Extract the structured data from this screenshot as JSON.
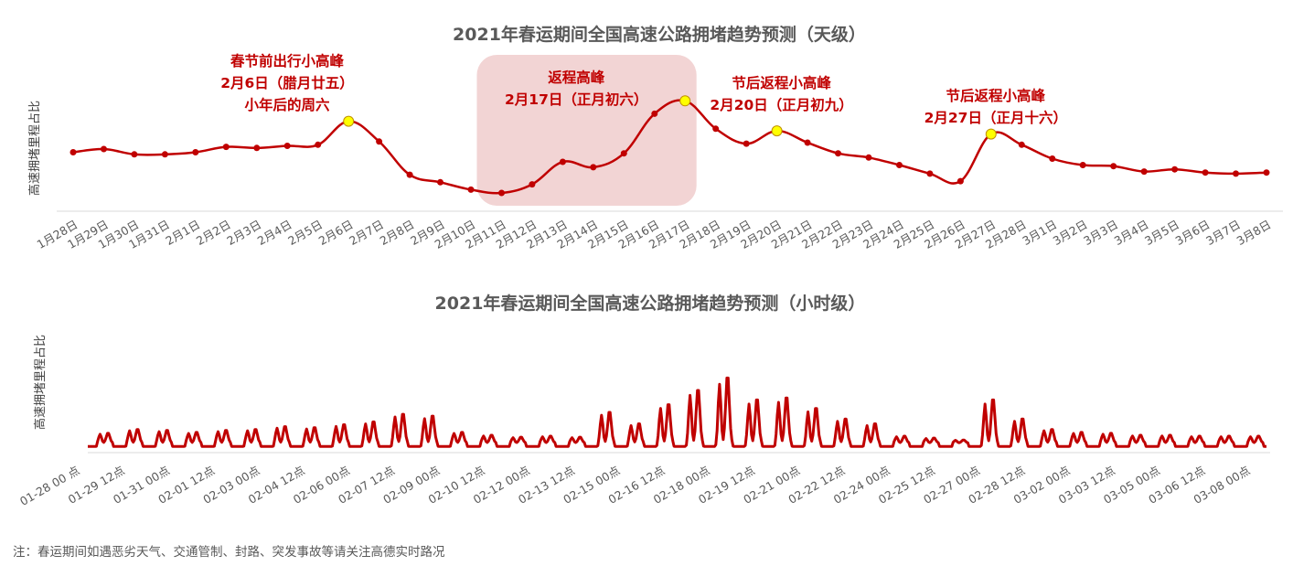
{
  "colors": {
    "line": "#c00000",
    "highlight_fill": "#f2d4d4",
    "marker_peak": "#ffff00",
    "axis": "#d9d9d9",
    "text": "#595959"
  },
  "footnote": "注：春运期间如遇恶劣天气、交通管制、封路、突发事故等请关注高德实时路况",
  "chart_data": [
    {
      "type": "line",
      "title": "2021年春运期间全国高速公路拥堵趋势预测（天级）",
      "ylabel": "高速拥堵里程占比",
      "xlabel": "",
      "grid": false,
      "ylim": [
        0,
        1
      ],
      "categories": [
        "1月28日",
        "1月29日",
        "1月30日",
        "1月31日",
        "2月1日",
        "2月2日",
        "2月3日",
        "2月4日",
        "2月5日",
        "2月6日",
        "2月7日",
        "2月8日",
        "2月9日",
        "2月10日",
        "2月11日",
        "2月12日",
        "2月13日",
        "2月14日",
        "2月15日",
        "2月16日",
        "2月17日",
        "2月18日",
        "2月19日",
        "2月20日",
        "2月21日",
        "2月22日",
        "2月23日",
        "2月24日",
        "2月25日",
        "2月26日",
        "2月27日",
        "2月28日",
        "3月1日",
        "3月2日",
        "3月3日",
        "3月4日",
        "3月5日",
        "3月6日",
        "3月7日",
        "3月8日"
      ],
      "values": [
        0.5,
        0.53,
        0.48,
        0.48,
        0.5,
        0.55,
        0.54,
        0.56,
        0.57,
        0.79,
        0.6,
        0.29,
        0.22,
        0.15,
        0.12,
        0.2,
        0.41,
        0.36,
        0.49,
        0.86,
        0.98,
        0.72,
        0.58,
        0.7,
        0.59,
        0.49,
        0.45,
        0.38,
        0.3,
        0.23,
        0.67,
        0.57,
        0.44,
        0.38,
        0.37,
        0.32,
        0.34,
        0.31,
        0.3,
        0.31
      ],
      "peaks": [
        9,
        20,
        23,
        30
      ],
      "highlight_range": [
        14,
        21
      ],
      "annotations": [
        {
          "lines": [
            "春节前出行小高峰",
            "2月6日（腊月廿五）",
            "小年后的周六"
          ]
        },
        {
          "lines": [
            "返程高峰",
            "2月17日（正月初六）"
          ]
        },
        {
          "lines": [
            "节后返程小高峰",
            "2月20日（正月初九）"
          ]
        },
        {
          "lines": [
            "节后返程小高峰",
            "2月27日（正月十六）"
          ]
        }
      ]
    },
    {
      "type": "line",
      "title": "2021年春运期间全国高速公路拥堵趋势预测（小时级）",
      "ylabel": "高速拥堵里程占比",
      "xlabel": "",
      "grid": false,
      "ylim": [
        0,
        1
      ],
      "tick_labels": [
        "01-28 00 点",
        "01-29 12点",
        "01-31 00点",
        "02-01 12点",
        "02-03 00点",
        "02-04 12点",
        "02-06 00点",
        "02-07 12点",
        "02-09 00点",
        "02-10 12点",
        "02-12 00点",
        "02-13 12点",
        "02-15 00点",
        "02-16 12点",
        "02-18 00点",
        "02-19 12点",
        "02-21 00点",
        "02-22 12点",
        "02-24 00点",
        "02-25 12点",
        "02-27 00点",
        "02-28 12点",
        "03-02 00点",
        "03-03 12点",
        "03-05 00点",
        "03-06 12点",
        "03-08 00点"
      ],
      "daily_peak": [
        0.1,
        0.14,
        0.13,
        0.11,
        0.13,
        0.14,
        0.17,
        0.16,
        0.19,
        0.22,
        0.3,
        0.28,
        0.11,
        0.08,
        0.06,
        0.07,
        0.06,
        0.32,
        0.2,
        0.4,
        0.55,
        0.68,
        0.45,
        0.47,
        0.36,
        0.25,
        0.2,
        0.07,
        0.05,
        0.03,
        0.45,
        0.25,
        0.14,
        0.11,
        0.1,
        0.08,
        0.08,
        0.07,
        0.07,
        0.07
      ],
      "base": 0.06
    }
  ]
}
